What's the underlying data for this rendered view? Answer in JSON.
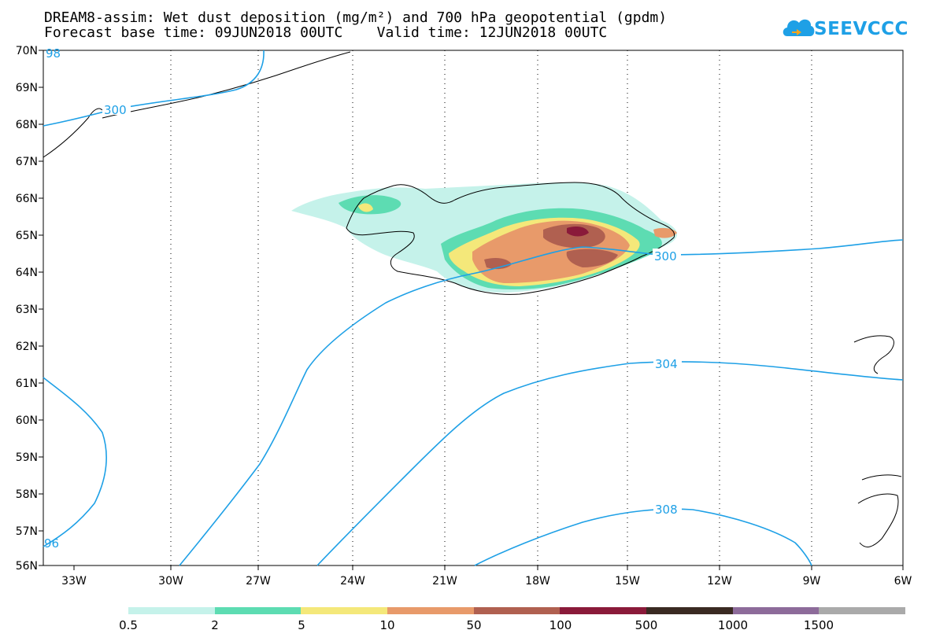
{
  "title": {
    "line1": "DREAM8-assim: Wet dust deposition (mg/m²) and 700 hPa geopotential (gpdm)",
    "line2": "Forecast base time: 09JUN2018 00UTC    Valid time: 12JUN2018 00UTC"
  },
  "logo": {
    "text": "SEEVCCC",
    "color": "#1ea0e6"
  },
  "map": {
    "lat_labels": [
      "70N",
      "69N",
      "68N",
      "67N",
      "66N",
      "65N",
      "64N",
      "63N",
      "62N",
      "61N",
      "60N",
      "59N",
      "58N",
      "57N",
      "56N"
    ],
    "lon_labels": [
      "33W",
      "30W",
      "27W",
      "24W",
      "21W",
      "18W",
      "15W",
      "12W",
      "9W",
      "6W"
    ],
    "contour_labels": [
      "300",
      "300",
      "304",
      "308",
      "96",
      "98"
    ],
    "contour_color": "#1ea0e6"
  },
  "legend": {
    "colors": [
      "#c5f2ea",
      "#5ddcb2",
      "#f4e87a",
      "#e89a6a",
      "#b06050",
      "#8a1a3a",
      "#3a2a22",
      "#8d6b9a",
      "#aaaaaa"
    ],
    "labels": [
      "0.5",
      "2",
      "5",
      "10",
      "50",
      "100",
      "500",
      "1000",
      "1500"
    ]
  }
}
